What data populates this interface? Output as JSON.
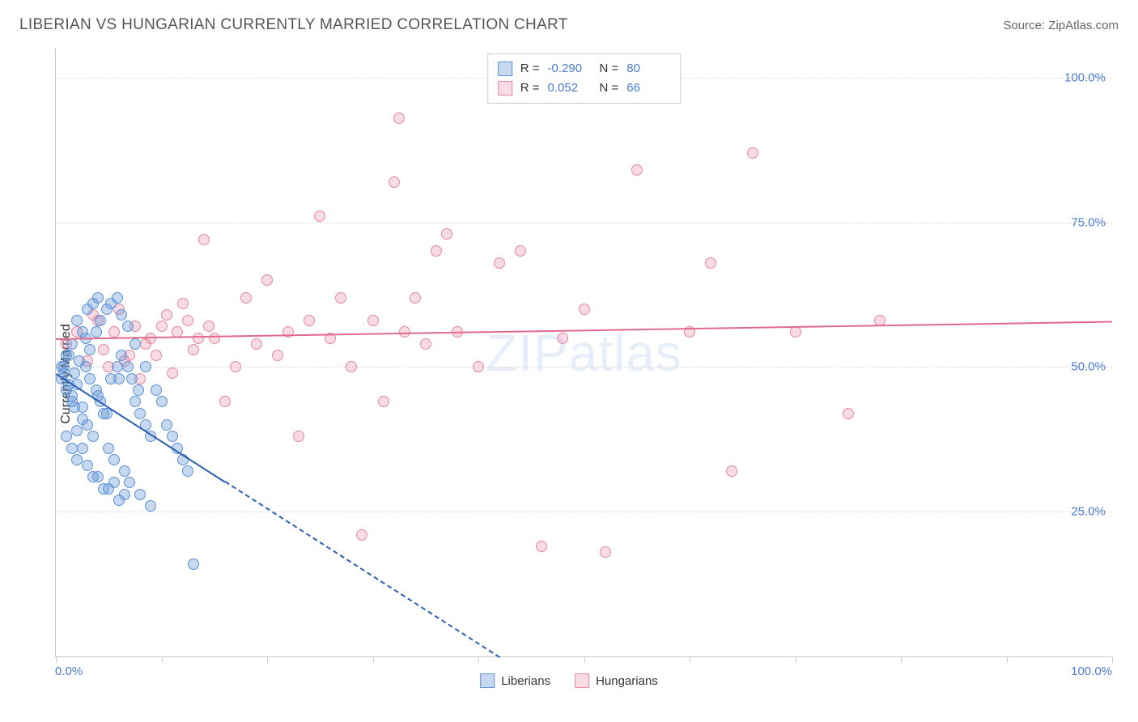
{
  "header": {
    "title": "LIBERIAN VS HUNGARIAN CURRENTLY MARRIED CORRELATION CHART",
    "source": "Source: ZipAtlas.com"
  },
  "ylabel": "Currently Married",
  "watermark": "ZIPatlas",
  "colors": {
    "blue_fill": "rgba(93,146,213,0.35)",
    "blue_stroke": "#5d92d5",
    "pink_fill": "rgba(235,137,162,0.30)",
    "pink_stroke": "#e589a2",
    "blue_line": "#2d5fb3",
    "pink_line": "#e06a8a",
    "tick_text": "#4a7bd1"
  },
  "axes": {
    "x_min": 0.0,
    "x_max": 100.0,
    "y_min": 0.0,
    "y_max": 105.0,
    "y_ticks": [
      25.0,
      50.0,
      75.0,
      100.0
    ],
    "y_tick_labels": [
      "25.0%",
      "50.0%",
      "75.0%",
      "100.0%"
    ],
    "x_ticks": [
      0,
      10,
      20,
      30,
      40,
      50,
      60,
      70,
      80,
      90,
      100
    ],
    "x_left_label": "0.0%",
    "x_right_label": "100.0%"
  },
  "legend_top": {
    "rows": [
      {
        "swatch": "blue",
        "r_label": "R =",
        "r_val": "-0.290",
        "n_label": "N =",
        "n_val": "80"
      },
      {
        "swatch": "pink",
        "r_label": "R =",
        "r_val": "0.052",
        "n_label": "N =",
        "n_val": "66"
      }
    ]
  },
  "legend_bottom": {
    "items": [
      {
        "swatch": "blue",
        "label": "Liberians"
      },
      {
        "swatch": "pink",
        "label": "Hungarians"
      }
    ]
  },
  "trend_lines": {
    "blue": {
      "x1": 0,
      "y1": 49,
      "x2": 42,
      "y2": 0,
      "dash_from_x": 16
    },
    "pink": {
      "x1": 0,
      "y1": 55,
      "x2": 100,
      "y2": 58
    }
  },
  "series": {
    "blue": [
      [
        0.5,
        48
      ],
      [
        0.8,
        50
      ],
      [
        1.0,
        46
      ],
      [
        1.2,
        52
      ],
      [
        1.5,
        44
      ],
      [
        1.8,
        49
      ],
      [
        2.0,
        47
      ],
      [
        2.2,
        51
      ],
      [
        2.5,
        43
      ],
      [
        2.8,
        55
      ],
      [
        3.0,
        40
      ],
      [
        3.2,
        53
      ],
      [
        3.5,
        38
      ],
      [
        3.8,
        56
      ],
      [
        4.0,
        45
      ],
      [
        4.2,
        58
      ],
      [
        4.5,
        42
      ],
      [
        4.8,
        60
      ],
      [
        5.0,
        36
      ],
      [
        5.2,
        61
      ],
      [
        5.5,
        34
      ],
      [
        5.8,
        62
      ],
      [
        6.0,
        48
      ],
      [
        6.2,
        59
      ],
      [
        6.5,
        32
      ],
      [
        6.8,
        57
      ],
      [
        7.0,
        30
      ],
      [
        7.5,
        54
      ],
      [
        8.0,
        28
      ],
      [
        8.5,
        50
      ],
      [
        9.0,
        26
      ],
      [
        9.5,
        46
      ],
      [
        10.0,
        44
      ],
      [
        10.5,
        40
      ],
      [
        11.0,
        38
      ],
      [
        11.5,
        36
      ],
      [
        12.0,
        34
      ],
      [
        12.5,
        32
      ],
      [
        13.0,
        16
      ],
      [
        4.0,
        31
      ],
      [
        5.0,
        29
      ],
      [
        6.0,
        27
      ],
      [
        3.0,
        60
      ],
      [
        3.5,
        61
      ],
      [
        4.0,
        62
      ],
      [
        2.0,
        58
      ],
      [
        2.5,
        56
      ],
      [
        1.5,
        54
      ],
      [
        1.0,
        52
      ],
      [
        0.5,
        50
      ],
      [
        7.5,
        44
      ],
      [
        8.0,
        42
      ],
      [
        8.5,
        40
      ],
      [
        9.0,
        38
      ],
      [
        3.0,
        33
      ],
      [
        3.5,
        31
      ],
      [
        4.5,
        29
      ],
      [
        5.5,
        30
      ],
      [
        6.5,
        28
      ],
      [
        2.0,
        39
      ],
      [
        2.5,
        41
      ],
      [
        1.8,
        43
      ],
      [
        1.5,
        45
      ],
      [
        1.2,
        47
      ],
      [
        0.8,
        49
      ],
      [
        2.8,
        50
      ],
      [
        3.2,
        48
      ],
      [
        3.8,
        46
      ],
      [
        4.2,
        44
      ],
      [
        4.8,
        42
      ],
      [
        5.2,
        48
      ],
      [
        5.8,
        50
      ],
      [
        6.2,
        52
      ],
      [
        6.8,
        50
      ],
      [
        7.2,
        48
      ],
      [
        7.8,
        46
      ],
      [
        1.0,
        38
      ],
      [
        1.5,
        36
      ],
      [
        2.0,
        34
      ],
      [
        2.5,
        36
      ]
    ],
    "pink": [
      [
        1.0,
        54
      ],
      [
        2.0,
        56
      ],
      [
        3.0,
        51
      ],
      [
        4.0,
        58
      ],
      [
        5.0,
        50
      ],
      [
        6.0,
        60
      ],
      [
        7.0,
        52
      ],
      [
        8.0,
        48
      ],
      [
        9.0,
        55
      ],
      [
        10.0,
        57
      ],
      [
        11.0,
        49
      ],
      [
        12.0,
        61
      ],
      [
        13.0,
        53
      ],
      [
        14.0,
        72
      ],
      [
        15.0,
        55
      ],
      [
        16.0,
        44
      ],
      [
        17.0,
        50
      ],
      [
        18.0,
        62
      ],
      [
        19.0,
        54
      ],
      [
        20.0,
        65
      ],
      [
        21.0,
        52
      ],
      [
        22.0,
        56
      ],
      [
        23.0,
        38
      ],
      [
        24.0,
        58
      ],
      [
        25.0,
        76
      ],
      [
        26.0,
        55
      ],
      [
        27.0,
        62
      ],
      [
        28.0,
        50
      ],
      [
        29.0,
        21
      ],
      [
        30.0,
        58
      ],
      [
        31.0,
        44
      ],
      [
        32.0,
        82
      ],
      [
        32.5,
        93
      ],
      [
        33.0,
        56
      ],
      [
        34.0,
        62
      ],
      [
        35.0,
        54
      ],
      [
        36.0,
        70
      ],
      [
        37.0,
        73
      ],
      [
        38.0,
        56
      ],
      [
        40.0,
        50
      ],
      [
        42.0,
        68
      ],
      [
        44.0,
        70
      ],
      [
        46.0,
        19
      ],
      [
        48.0,
        55
      ],
      [
        50.0,
        60
      ],
      [
        52.0,
        18
      ],
      [
        55.0,
        84
      ],
      [
        60.0,
        56
      ],
      [
        62.0,
        68
      ],
      [
        64.0,
        32
      ],
      [
        66.0,
        87
      ],
      [
        70.0,
        56
      ],
      [
        75.0,
        42
      ],
      [
        78.0,
        58
      ],
      [
        3.5,
        59
      ],
      [
        4.5,
        53
      ],
      [
        5.5,
        56
      ],
      [
        6.5,
        51
      ],
      [
        7.5,
        57
      ],
      [
        8.5,
        54
      ],
      [
        9.5,
        52
      ],
      [
        10.5,
        59
      ],
      [
        11.5,
        56
      ],
      [
        12.5,
        58
      ],
      [
        13.5,
        55
      ],
      [
        14.5,
        57
      ]
    ]
  }
}
